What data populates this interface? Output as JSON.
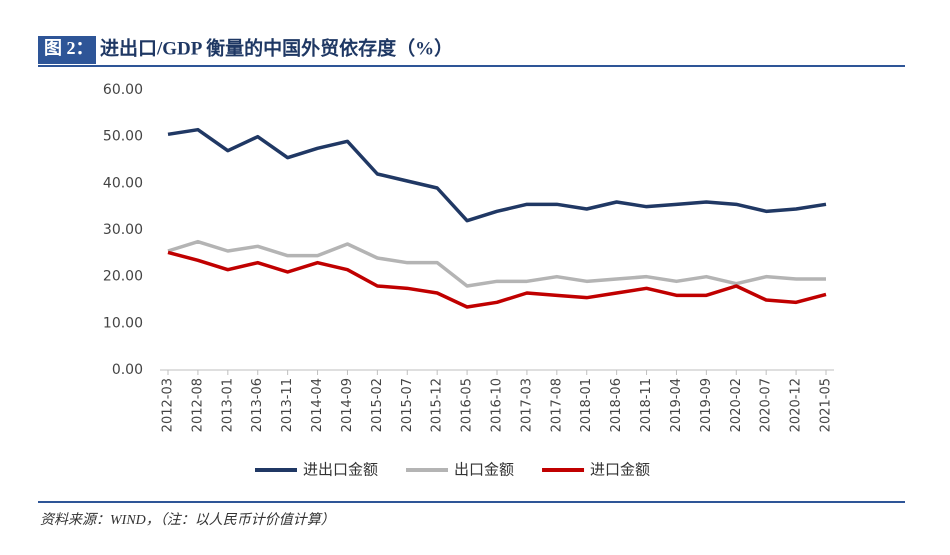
{
  "header": {
    "label": "图 2：",
    "title": "进出口/GDP 衡量的中国外贸依存度（%）"
  },
  "chart_data": {
    "type": "line",
    "categories": [
      "2012-03",
      "2012-08",
      "2013-01",
      "2013-06",
      "2013-11",
      "2014-04",
      "2014-09",
      "2015-02",
      "2015-07",
      "2015-12",
      "2016-05",
      "2016-10",
      "2017-03",
      "2017-08",
      "2018-01",
      "2018-06",
      "2018-11",
      "2019-04",
      "2019-09",
      "2020-02",
      "2020-07",
      "2020-12",
      "2021-05"
    ],
    "series": [
      {
        "name": "进出口金额",
        "color": "#203864",
        "values": [
          50.5,
          51.5,
          47,
          50,
          45.5,
          47.5,
          49,
          42,
          40.5,
          39,
          32,
          34,
          35.5,
          35.5,
          34.5,
          36,
          35,
          35.5,
          36,
          35.5,
          34,
          34.5,
          35.5
        ]
      },
      {
        "name": "出口金额",
        "color": "#b4b4b4",
        "values": [
          25.5,
          27.5,
          25.5,
          26.5,
          24.5,
          24.5,
          27,
          24,
          23,
          23,
          18,
          19,
          19,
          20,
          19,
          19.5,
          20,
          19,
          20,
          18.5,
          20,
          19.5,
          19.5
        ]
      },
      {
        "name": "进口金额",
        "color": "#c00000",
        "values": [
          25.2,
          23.5,
          21.5,
          23,
          21,
          23,
          21.5,
          18,
          17.5,
          16.5,
          13.5,
          14.5,
          16.5,
          16,
          15.5,
          16.5,
          17.5,
          16,
          16,
          18,
          15,
          14.5,
          16.2
        ]
      }
    ],
    "ylim": [
      0,
      60
    ],
    "yticks": [
      {
        "value": 0,
        "label": "0.00"
      },
      {
        "value": 10,
        "label": "10.00"
      },
      {
        "value": 20,
        "label": "20.00"
      },
      {
        "value": 30,
        "label": "30.00"
      },
      {
        "value": 40,
        "label": "40.00"
      },
      {
        "value": 50,
        "label": "50.00"
      },
      {
        "value": 60,
        "label": "60.00"
      }
    ],
    "legend": "bottom"
  },
  "footer": {
    "source": "资料来源：WIND，（注：以人民币计价值计算）"
  }
}
